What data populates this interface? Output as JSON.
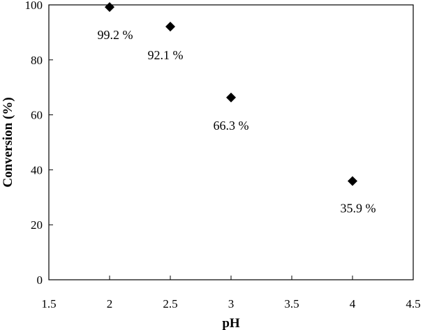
{
  "chart_data": {
    "type": "scatter",
    "title": "",
    "xlabel": "pH",
    "ylabel": "Conversion (%)",
    "xlim": [
      1.5,
      4.5
    ],
    "ylim": [
      0,
      100
    ],
    "x_ticks": [
      1.5,
      2,
      2.5,
      3,
      3.5,
      4,
      4.5
    ],
    "y_ticks": [
      0,
      20,
      40,
      60,
      80,
      100
    ],
    "x_tick_labels": [
      "1.5",
      "2",
      "2.5",
      "3",
      "3.5",
      "4",
      "4.5"
    ],
    "y_tick_labels": [
      "0",
      "20",
      "40",
      "60",
      "80",
      "100"
    ],
    "grid": false,
    "legend": "none",
    "marker": "diamond",
    "marker_color": "#000000",
    "points": [
      {
        "x": 2.0,
        "y": 99.2,
        "label": "99.2 %"
      },
      {
        "x": 2.5,
        "y": 92.1,
        "label": "92.1 %"
      },
      {
        "x": 3.0,
        "y": 66.3,
        "label": "66.3 %"
      },
      {
        "x": 4.0,
        "y": 35.9,
        "label": "35.9 %"
      }
    ]
  }
}
